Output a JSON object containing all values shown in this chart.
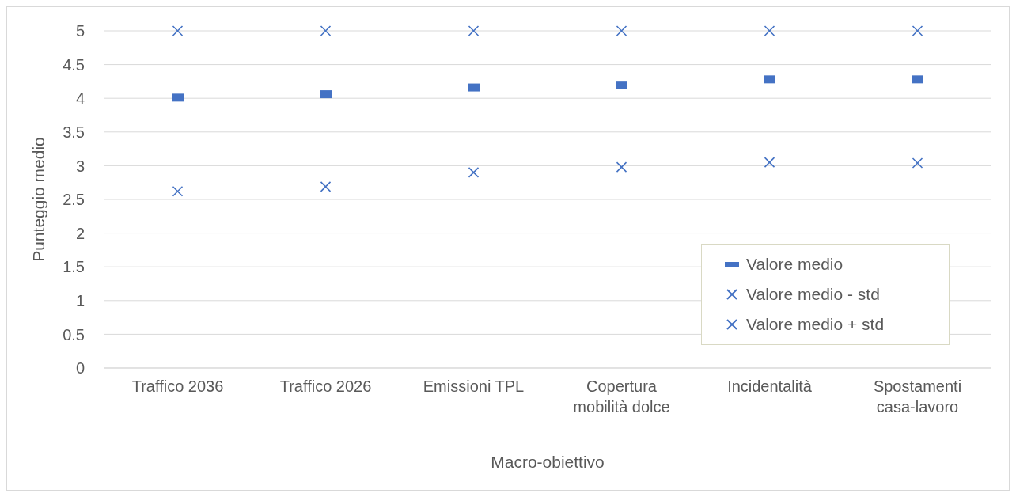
{
  "chart_data": {
    "type": "scatter",
    "xlabel": "Macro-obiettivo",
    "ylabel": "Punteggio medio",
    "categories": [
      "Traffico 2036",
      "Traffico 2026",
      "Emissioni TPL",
      "Copertura mobilità dolce",
      "Incidentalità",
      "Spostamenti casa-lavoro"
    ],
    "series": [
      {
        "name": "Valore medio",
        "color": "#4472c4",
        "marker": "square",
        "values": [
          4.01,
          4.06,
          4.16,
          4.2,
          4.28,
          4.28
        ]
      },
      {
        "name": "Valore medio - std",
        "color": "#4472c4",
        "marker": "cross",
        "values": [
          2.62,
          2.69,
          2.9,
          2.98,
          3.05,
          3.04
        ]
      },
      {
        "name": "Valore medio + std",
        "color": "#4472c4",
        "marker": "cross",
        "values": [
          5,
          5,
          5,
          5,
          5,
          5
        ]
      }
    ],
    "ylim": [
      0,
      5
    ],
    "yticks": [
      0,
      0.5,
      1,
      1.5,
      2,
      2.5,
      3,
      3.5,
      4,
      4.5,
      5
    ],
    "grid": "y",
    "legend": "right"
  }
}
